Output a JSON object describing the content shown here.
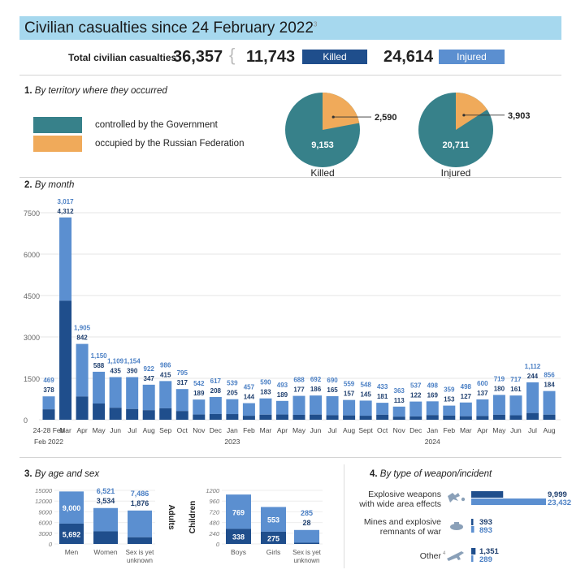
{
  "header": {
    "title": "Civilian casualties since 24 February 2022",
    "title_note": "3"
  },
  "totals": {
    "label": "Total civilian casualties",
    "total": "36,357",
    "killed": "11,743",
    "killed_label": "Killed",
    "injured": "24,614",
    "injured_label": "Injured"
  },
  "colors": {
    "killed": "#1f4e8c",
    "injured": "#5b8fd0",
    "government": "#37818a",
    "occupied": "#f0aa5a"
  },
  "territory": {
    "num": "1.",
    "title": "By territory where they occurred",
    "legend": [
      "controlled by the Government",
      "occupied by the Russian Federation"
    ],
    "pies": [
      {
        "label": "Killed",
        "government": 9153,
        "occupied": 2590,
        "government_label": "9,153",
        "occupied_label": "2,590"
      },
      {
        "label": "Injured",
        "government": 20711,
        "occupied": 3903,
        "government_label": "20,711",
        "occupied_label": "3,903"
      }
    ]
  },
  "by_month": {
    "num": "2.",
    "title": "By month"
  },
  "chart_data": [
    {
      "type": "bar",
      "stacked": true,
      "title": "By month",
      "ylim": [
        0,
        7500
      ],
      "yticks": [
        "0",
        "1500",
        "3000",
        "4500",
        "6000",
        "7500"
      ],
      "categories": [
        "24-28 Feb",
        "Mar",
        "Apr",
        "May",
        "Jun",
        "Jul",
        "Aug",
        "Sep",
        "Oct",
        "Nov",
        "Dec",
        "Jan",
        "Feb",
        "Mar",
        "Apr",
        "May",
        "Jun",
        "Jul",
        "Aug",
        "Sept",
        "Oct",
        "Nov",
        "Dec",
        "Jan",
        "Feb",
        "Mar",
        "Apr",
        "May",
        "Jun",
        "Jul",
        "Aug"
      ],
      "year_labels": [
        {
          "after": "24-28 Feb",
          "text": "2022"
        },
        {
          "under": "Jan",
          "index": 11,
          "text": "2023"
        },
        {
          "under": "Jan",
          "index": 23,
          "text": "2024"
        }
      ],
      "series": [
        {
          "name": "Killed",
          "values": [
            378,
            4312,
            842,
            588,
            435,
            390,
            347,
            415,
            317,
            189,
            208,
            205,
            144,
            183,
            189,
            177,
            186,
            165,
            157,
            145,
            181,
            113,
            122,
            169,
            153,
            127,
            137,
            180,
            161,
            244,
            184
          ]
        },
        {
          "name": "Injured",
          "values": [
            469,
            3017,
            1905,
            1150,
            1109,
            1154,
            922,
            986,
            795,
            542,
            617,
            539,
            457,
            590,
            493,
            688,
            692,
            690,
            559,
            548,
            433,
            363,
            537,
            498,
            359,
            498,
            600,
            719,
            717,
            1112,
            856
          ]
        }
      ]
    },
    {
      "type": "bar",
      "stacked": true,
      "title": "Adults",
      "ylim": [
        0,
        15000
      ],
      "yticks": [
        "0",
        "3000",
        "6000",
        "9000",
        "12000",
        "15000"
      ],
      "categories": [
        "Men",
        "Women",
        "Sex is yet unknown"
      ],
      "series": [
        {
          "name": "Killed",
          "values": [
            5692,
            3534,
            1876
          ]
        },
        {
          "name": "Injured",
          "values": [
            9000,
            6521,
            7486
          ]
        }
      ]
    },
    {
      "type": "bar",
      "stacked": true,
      "title": "Children",
      "ylim": [
        0,
        1200
      ],
      "yticks": [
        "0",
        "240",
        "480",
        "720",
        "960",
        "1200"
      ],
      "categories": [
        "Boys",
        "Girls",
        "Sex is yet unknown"
      ],
      "series": [
        {
          "name": "Killed",
          "values": [
            338,
            275,
            28
          ]
        },
        {
          "name": "Injured",
          "values": [
            769,
            553,
            285
          ]
        }
      ]
    },
    {
      "type": "bar",
      "orientation": "horizontal",
      "title": "By type of weapon/incident",
      "categories": [
        "Explosive weapons with wide area effects",
        "Mines and explosive remnants of war",
        "Other"
      ],
      "series": [
        {
          "name": "Killed",
          "values": [
            9999,
            393,
            1351
          ]
        },
        {
          "name": "Injured",
          "values": [
            23432,
            893,
            289
          ]
        }
      ]
    }
  ],
  "age_sex": {
    "num": "3.",
    "title": "By age and sex",
    "adults_label": "Adults",
    "children_label": "Children"
  },
  "weapon": {
    "num": "4.",
    "title": "By type of weapon/incident",
    "other_note": "4",
    "rows": [
      {
        "label_lines": [
          "Explosive weapons",
          "with wide area effects"
        ],
        "icon": "explosion-icon"
      },
      {
        "label_lines": [
          "Mines and explosive",
          "remnants of war"
        ],
        "icon": "landmine-icon"
      },
      {
        "label_lines": [
          "Other"
        ],
        "icon": "rifle-icon"
      }
    ]
  }
}
